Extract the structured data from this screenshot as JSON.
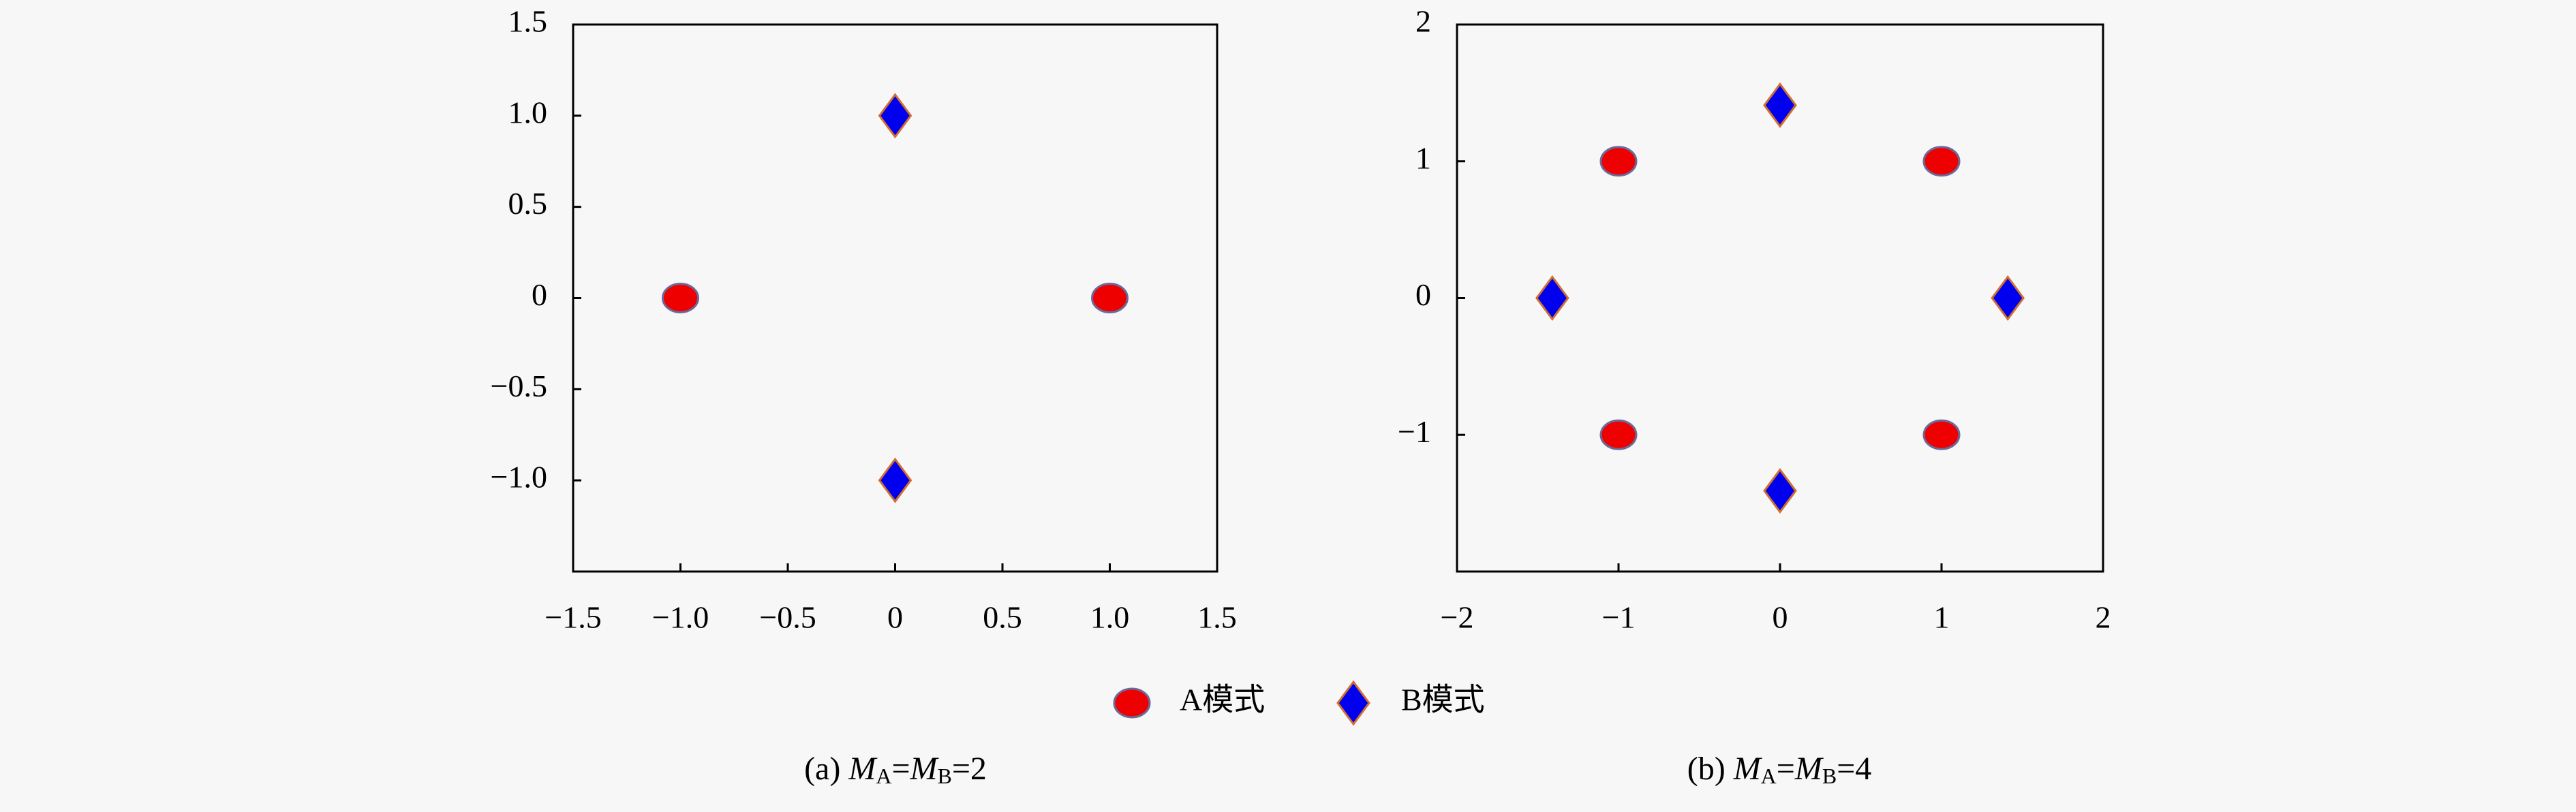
{
  "chart_data": [
    {
      "type": "scatter",
      "caption": [
        "(a) ",
        "M",
        "A",
        "=",
        "M",
        "B",
        "=2"
      ],
      "xlim": [
        -1.5,
        1.5
      ],
      "ylim": [
        -1.5,
        1.5
      ],
      "xticks": [
        {
          "value": -1.5,
          "label": "−1.5"
        },
        {
          "value": -1.0,
          "label": "−1.0"
        },
        {
          "value": -0.5,
          "label": "−0.5"
        },
        0,
        0.5,
        {
          "value": 1.0,
          "label": "1.0"
        },
        1.5
      ],
      "yticks": [
        {
          "value": -1.0,
          "label": "−1.0"
        },
        {
          "value": -0.5,
          "label": "−0.5"
        },
        0,
        0.5,
        {
          "value": 1.0,
          "label": "1.0"
        },
        1.5
      ],
      "series": [
        {
          "name": "A模式",
          "color": "#ee0000",
          "marker": "circle",
          "x": [
            -1,
            1
          ],
          "values": [
            0,
            0
          ]
        },
        {
          "name": "B模式",
          "color": "#0000ee",
          "marker": "diamond",
          "x": [
            0,
            0
          ],
          "values": [
            1,
            -1
          ]
        }
      ]
    },
    {
      "type": "scatter",
      "caption": [
        "(b) ",
        "M",
        "A",
        "=",
        "M",
        "B",
        "=4"
      ],
      "xlim": [
        -2,
        2
      ],
      "ylim": [
        -2,
        2
      ],
      "xticks": [
        {
          "value": -2,
          "label": "−2"
        },
        {
          "value": -1,
          "label": "−1"
        },
        0,
        1,
        2
      ],
      "yticks": [
        {
          "value": -1,
          "label": "−1"
        },
        0,
        1,
        2
      ],
      "series": [
        {
          "color": "#ee0000",
          "marker": "circle",
          "x": [
            -1,
            1,
            -1,
            1
          ],
          "values": [
            1,
            1,
            -1,
            -1
          ]
        },
        {
          "color": "#0000ee",
          "marker": "diamond",
          "x": [
            0,
            -1.41,
            1.41,
            0
          ],
          "values": [
            1.41,
            0,
            0,
            -1.41
          ]
        }
      ]
    }
  ]
}
